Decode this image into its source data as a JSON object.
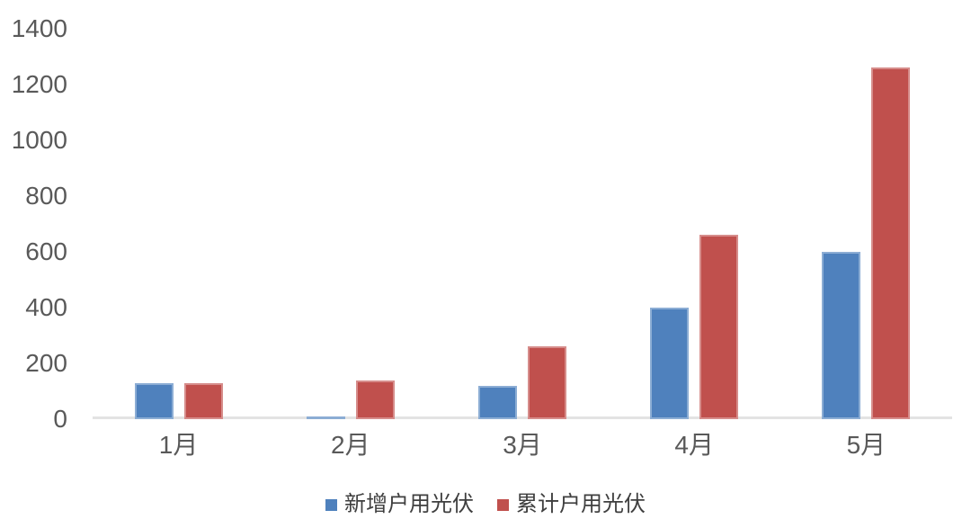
{
  "chart_data": {
    "type": "bar",
    "title": "",
    "xlabel": "",
    "ylabel": "",
    "categories": [
      "1月",
      "2月",
      "3月",
      "4月",
      "5月"
    ],
    "series": [
      {
        "name": "新增户用光伏",
        "color": "#4F81BD",
        "values": [
          130,
          10,
          120,
          400,
          600
        ]
      },
      {
        "name": "累计户用光伏",
        "color": "#C0504D",
        "values": [
          130,
          140,
          260,
          660,
          1260
        ]
      }
    ],
    "ylim": [
      0,
      1400
    ],
    "yticks": [
      0,
      200,
      400,
      600,
      800,
      1000,
      1200,
      1400
    ],
    "grid": false,
    "legend_position": "bottom"
  },
  "style": {
    "bar_blue": "#4F81BD",
    "bar_red": "#C0504D",
    "tick_text_color": "#595959",
    "legend_text_color": "#3F3F3F",
    "axis_line_color": "#E3E3E3",
    "background": "#FFFFFF"
  }
}
